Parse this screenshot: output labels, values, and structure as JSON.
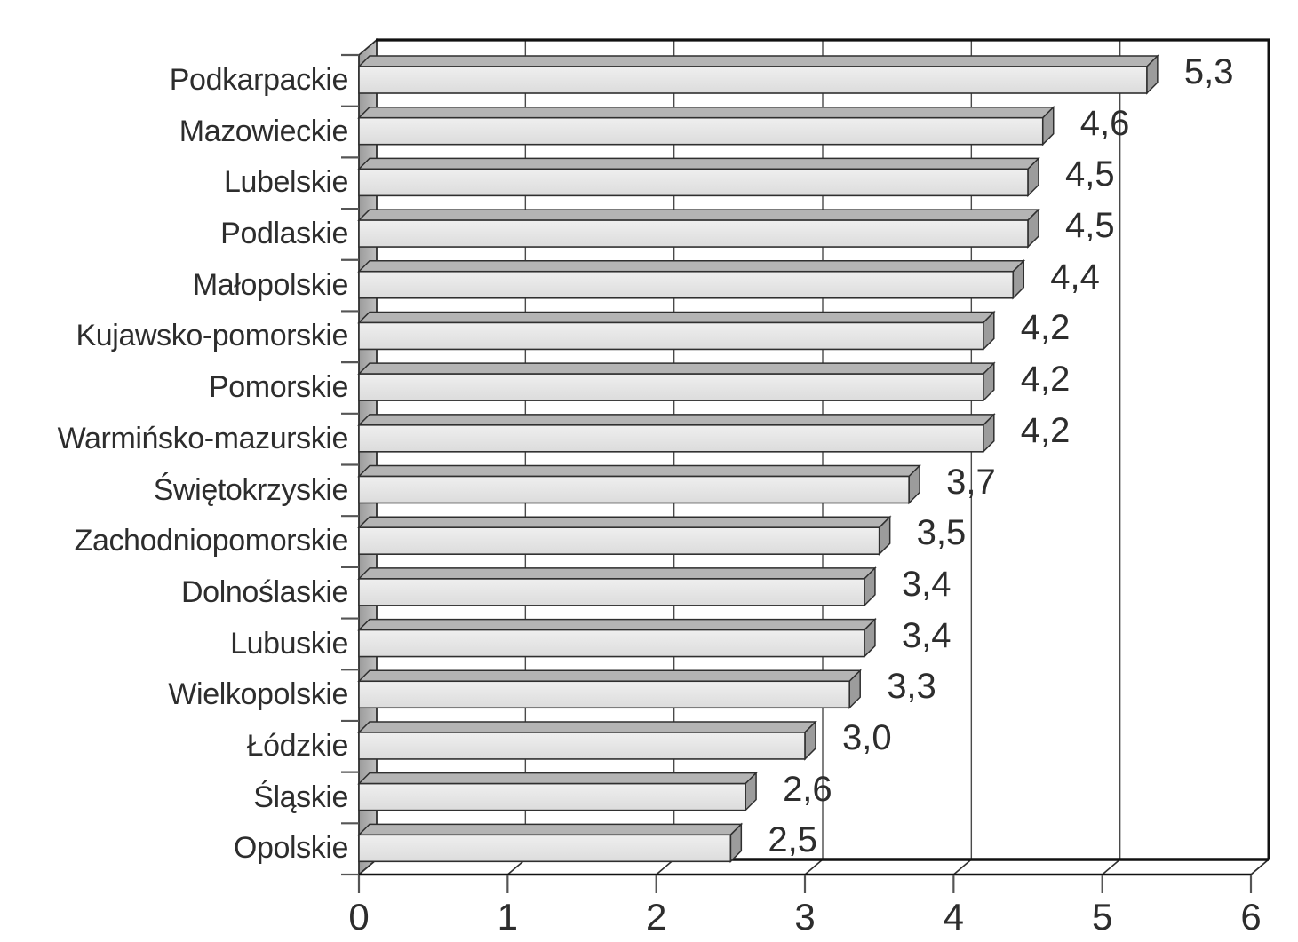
{
  "chart_data": {
    "type": "bar",
    "orientation": "horizontal",
    "style": "3d-extruded-bars",
    "title": "",
    "xlabel": "",
    "ylabel": "",
    "categories": [
      "Podkarpackie",
      "Mazowieckie",
      "Lubelskie",
      "Podlaskie",
      "Małopolskie",
      "Kujawsko-pomorskie",
      "Pomorskie",
      "Warmińsko-mazurskie",
      "Świętokrzyskie",
      "Zachodniopomorskie",
      "Dolnoślaskie",
      "Lubuskie",
      "Wielkopolskie",
      "Łódzkie",
      "Śląskie",
      "Opolskie"
    ],
    "values": [
      5.3,
      4.6,
      4.5,
      4.5,
      4.4,
      4.2,
      4.2,
      4.2,
      3.7,
      3.5,
      3.4,
      3.4,
      3.3,
      3.0,
      2.6,
      2.5
    ],
    "value_labels": [
      "5,3",
      "4,6",
      "4,5",
      "4,5",
      "4,4",
      "4,2",
      "4,2",
      "4,2",
      "3,7",
      "3,5",
      "3,4",
      "3,4",
      "3,3",
      "3,0",
      "2,6",
      "2,5"
    ],
    "xlim": [
      0,
      6
    ],
    "x_ticks": [
      0,
      1,
      2,
      3,
      4,
      5,
      6
    ],
    "x_tick_labels": [
      "0",
      "1",
      "2",
      "3",
      "4",
      "5",
      "6"
    ],
    "grid": true,
    "legend": false,
    "decimal_separator": ","
  },
  "colors": {
    "background": "#ffffff",
    "bar_front_light": "#efefef",
    "bar_front_dark": "#dcdcdc",
    "bar_top_face": "#b4b4b4",
    "bar_side_face": "#9c9c9c",
    "wall_dark": "#9b9b9b",
    "wall_light": "#bfbfbf",
    "outline": "#2f2f2f",
    "border": "#111111",
    "grid_line": "#4a4a4a",
    "tick": "#555555",
    "text": "#2d2d2d"
  }
}
